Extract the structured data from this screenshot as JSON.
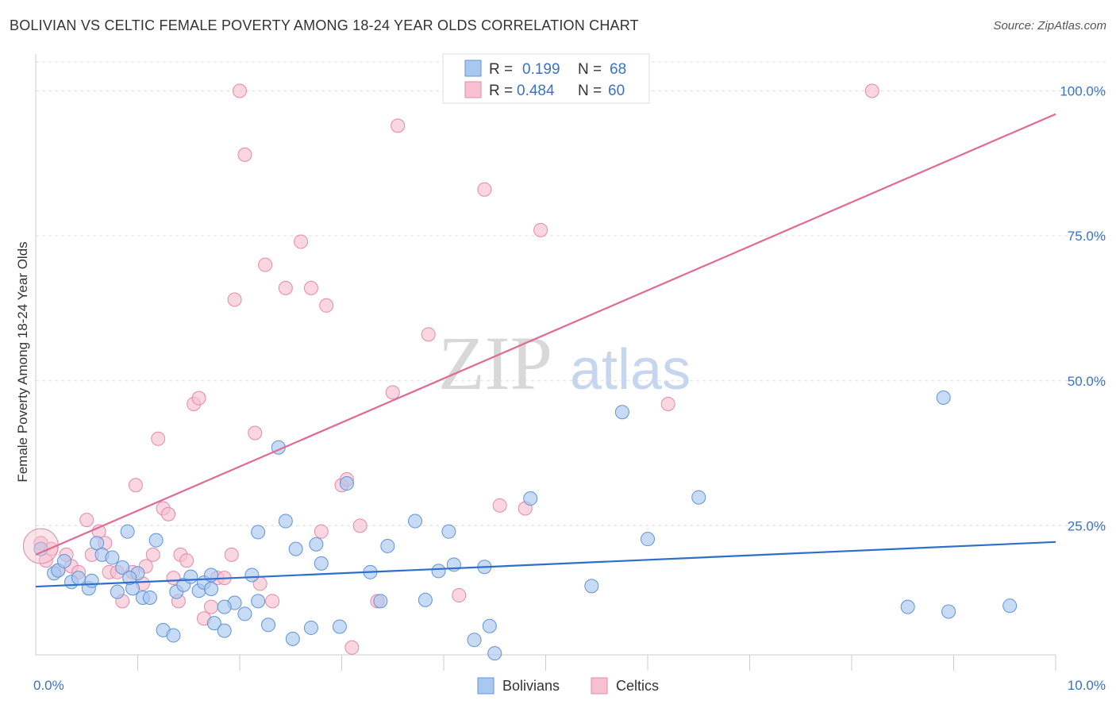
{
  "title": "BOLIVIAN VS CELTIC FEMALE POVERTY AMONG 18-24 YEAR OLDS CORRELATION CHART",
  "source": "Source: ZipAtlas.com",
  "watermark": {
    "zip": "ZIP",
    "atlas": "atlas"
  },
  "colors": {
    "bolivians_fill": "#a9c8f0",
    "bolivians_stroke": "#5f93d8",
    "bolivians_line": "#2e6fcc",
    "celtics_fill": "#f6c0d0",
    "celtics_stroke": "#e38aa8",
    "celtics_line": "#e06a93",
    "grid": "#dddddd",
    "tick_text": "#3a72c4"
  },
  "legend": {
    "rows": [
      {
        "r_label": "R =",
        "r_value": "0.199",
        "n_label": "N =",
        "n_value": "68"
      },
      {
        "r_label": "R =",
        "r_value": "0.484",
        "n_label": "N =",
        "n_value": "60"
      }
    ]
  },
  "chart_data": {
    "type": "scatter",
    "title": "BOLIVIAN VS CELTIC FEMALE POVERTY AMONG 18-24 YEAR OLDS CORRELATION CHART",
    "xlabel": "",
    "ylabel": "Female Poverty Among 18-24 Year Olds",
    "xlim": [
      0,
      10
    ],
    "ylim": [
      0,
      105
    ],
    "x_tick_labels": [
      "0.0%",
      "10.0%"
    ],
    "y_tick_labels": [
      "25.0%",
      "50.0%",
      "75.0%",
      "100.0%"
    ],
    "y_ticks": [
      25,
      50,
      75,
      100
    ],
    "grid": true,
    "legend_position": "top-center",
    "series": [
      {
        "name": "Bolivians",
        "color": "#a9c8f0",
        "r": 0.199,
        "n": 68,
        "trend": {
          "x": [
            0,
            10
          ],
          "y": [
            14.5,
            22.2
          ]
        },
        "points": [
          [
            0.05,
            21.0
          ],
          [
            0.18,
            16.8
          ],
          [
            0.22,
            17.3
          ],
          [
            0.28,
            18.9
          ],
          [
            0.35,
            15.3
          ],
          [
            0.42,
            16.0
          ],
          [
            0.52,
            14.2
          ],
          [
            0.6,
            22.0
          ],
          [
            0.65,
            20.0
          ],
          [
            0.75,
            19.5
          ],
          [
            0.8,
            13.6
          ],
          [
            0.85,
            17.8
          ],
          [
            0.9,
            24.0
          ],
          [
            0.95,
            14.2
          ],
          [
            1.0,
            16.8
          ],
          [
            1.05,
            12.6
          ],
          [
            1.12,
            12.6
          ],
          [
            1.18,
            22.5
          ],
          [
            1.25,
            7.0
          ],
          [
            1.35,
            6.1
          ],
          [
            1.38,
            13.6
          ],
          [
            1.45,
            14.8
          ],
          [
            1.52,
            16.2
          ],
          [
            1.6,
            13.8
          ],
          [
            1.65,
            15.2
          ],
          [
            1.72,
            16.5
          ],
          [
            1.75,
            8.2
          ],
          [
            1.85,
            6.9
          ],
          [
            1.95,
            11.7
          ],
          [
            2.05,
            9.8
          ],
          [
            2.12,
            16.5
          ],
          [
            2.18,
            23.9
          ],
          [
            2.28,
            7.9
          ],
          [
            2.38,
            38.5
          ],
          [
            2.45,
            25.8
          ],
          [
            2.55,
            21.0
          ],
          [
            2.7,
            7.4
          ],
          [
            2.75,
            21.8
          ],
          [
            2.8,
            18.5
          ],
          [
            2.98,
            7.6
          ],
          [
            3.05,
            32.3
          ],
          [
            3.28,
            17.0
          ],
          [
            3.38,
            12.0
          ],
          [
            3.45,
            21.5
          ],
          [
            3.72,
            25.8
          ],
          [
            3.82,
            12.2
          ],
          [
            3.95,
            17.2
          ],
          [
            4.05,
            24.0
          ],
          [
            4.1,
            18.3
          ],
          [
            4.3,
            5.3
          ],
          [
            4.4,
            17.9
          ],
          [
            4.45,
            7.7
          ],
          [
            4.5,
            3.0
          ],
          [
            4.85,
            29.7
          ],
          [
            5.45,
            14.6
          ],
          [
            5.75,
            44.6
          ],
          [
            6.0,
            22.7
          ],
          [
            6.5,
            29.9
          ],
          [
            8.55,
            11.0
          ],
          [
            8.9,
            47.1
          ],
          [
            8.95,
            10.2
          ],
          [
            9.55,
            11.2
          ],
          [
            0.92,
            16.0
          ],
          [
            1.72,
            14.1
          ],
          [
            2.18,
            12.0
          ],
          [
            2.52,
            5.5
          ],
          [
            0.55,
            15.5
          ],
          [
            1.85,
            11.0
          ]
        ]
      },
      {
        "name": "Celtics",
        "color": "#f6c0d0",
        "r": 0.484,
        "n": 60,
        "trend": {
          "x": [
            0,
            10
          ],
          "y": [
            20.0,
            96.0
          ]
        },
        "points": [
          [
            0.05,
            22.0
          ],
          [
            0.15,
            21.0
          ],
          [
            0.22,
            17.3
          ],
          [
            0.3,
            20.0
          ],
          [
            0.35,
            18.0
          ],
          [
            0.42,
            17.0
          ],
          [
            0.5,
            26.0
          ],
          [
            0.55,
            20.0
          ],
          [
            0.62,
            24.0
          ],
          [
            0.68,
            22.0
          ],
          [
            0.72,
            17.0
          ],
          [
            0.8,
            17.0
          ],
          [
            0.85,
            12.0
          ],
          [
            0.95,
            17.0
          ],
          [
            0.98,
            32.0
          ],
          [
            1.05,
            15.0
          ],
          [
            1.08,
            18.0
          ],
          [
            1.15,
            20.0
          ],
          [
            1.2,
            40.0
          ],
          [
            1.25,
            28.0
          ],
          [
            1.3,
            27.0
          ],
          [
            1.35,
            16.0
          ],
          [
            1.42,
            20.0
          ],
          [
            1.48,
            19.0
          ],
          [
            1.55,
            46.0
          ],
          [
            1.6,
            47.0
          ],
          [
            1.65,
            9.0
          ],
          [
            1.72,
            11.0
          ],
          [
            1.78,
            16.0
          ],
          [
            1.85,
            16.0
          ],
          [
            1.92,
            20.0
          ],
          [
            1.95,
            64.0
          ],
          [
            2.0,
            100.0
          ],
          [
            2.05,
            89.0
          ],
          [
            2.15,
            41.0
          ],
          [
            2.2,
            15.0
          ],
          [
            2.25,
            70.0
          ],
          [
            2.32,
            12.0
          ],
          [
            2.45,
            66.0
          ],
          [
            2.6,
            74.0
          ],
          [
            2.7,
            66.0
          ],
          [
            2.8,
            24.0
          ],
          [
            2.85,
            63.0
          ],
          [
            3.0,
            32.0
          ],
          [
            3.05,
            33.0
          ],
          [
            3.1,
            4.0
          ],
          [
            3.18,
            25.0
          ],
          [
            3.35,
            12.0
          ],
          [
            3.5,
            48.0
          ],
          [
            3.55,
            94.0
          ],
          [
            3.85,
            58.0
          ],
          [
            4.15,
            13.0
          ],
          [
            4.4,
            83.0
          ],
          [
            4.55,
            28.5
          ],
          [
            4.8,
            28.0
          ],
          [
            4.95,
            76.0
          ],
          [
            6.2,
            46.0
          ],
          [
            8.2,
            100.0
          ],
          [
            0.1,
            19.0
          ],
          [
            1.4,
            12.0
          ]
        ]
      }
    ]
  },
  "bottom_legend": {
    "bolivians": "Bolivians",
    "celtics": "Celtics"
  },
  "axes": {
    "x_min_label": "0.0%",
    "x_max_label": "10.0%"
  }
}
